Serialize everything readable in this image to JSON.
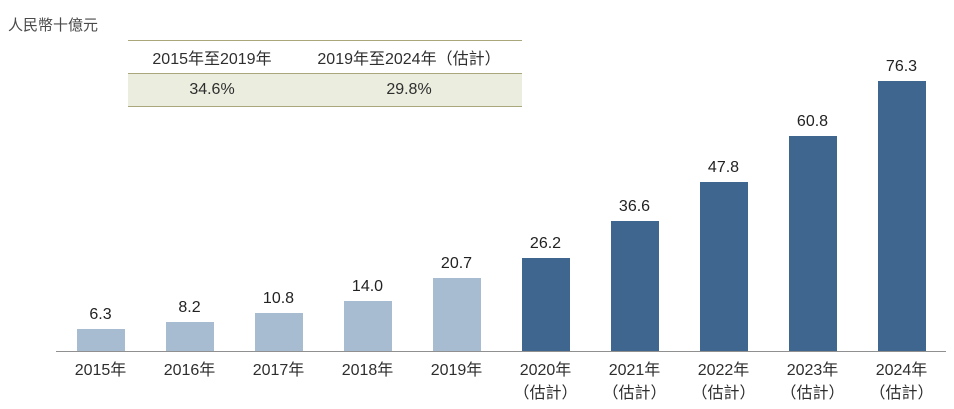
{
  "chart_data": {
    "type": "bar",
    "title": "",
    "unit_label": "人民幣十億元",
    "xlabel": "",
    "ylabel": "人民幣十億元",
    "ylim": [
      0,
      80
    ],
    "grid": false,
    "legend": "none",
    "categories": [
      "2015年",
      "2016年",
      "2017年",
      "2018年",
      "2019年",
      "2020年（估計）",
      "2021年（估計）",
      "2022年（估計）",
      "2023年（估計）",
      "2024年（估計）"
    ],
    "values": [
      6.3,
      8.2,
      10.8,
      14.0,
      20.7,
      26.2,
      36.6,
      47.8,
      60.8,
      76.3
    ],
    "points": [
      {
        "category": "2015年",
        "sublabel": "",
        "value": 6.3,
        "label": "6.3",
        "segment": "historical"
      },
      {
        "category": "2016年",
        "sublabel": "",
        "value": 8.2,
        "label": "8.2",
        "segment": "historical"
      },
      {
        "category": "2017年",
        "sublabel": "",
        "value": 10.8,
        "label": "10.8",
        "segment": "historical"
      },
      {
        "category": "2018年",
        "sublabel": "",
        "value": 14.0,
        "label": "14.0",
        "segment": "historical"
      },
      {
        "category": "2019年",
        "sublabel": "",
        "value": 20.7,
        "label": "20.7",
        "segment": "historical"
      },
      {
        "category": "2020年",
        "sublabel": "（估計）",
        "value": 26.2,
        "label": "26.2",
        "segment": "estimate"
      },
      {
        "category": "2021年",
        "sublabel": "（估計）",
        "value": 36.6,
        "label": "36.6",
        "segment": "estimate"
      },
      {
        "category": "2022年",
        "sublabel": "（估計）",
        "value": 47.8,
        "label": "47.8",
        "segment": "estimate"
      },
      {
        "category": "2023年",
        "sublabel": "（估計）",
        "value": 60.8,
        "label": "60.8",
        "segment": "estimate"
      },
      {
        "category": "2024年",
        "sublabel": "（估計）",
        "value": 76.3,
        "label": "76.3",
        "segment": "estimate"
      }
    ],
    "colors": {
      "historical": "#a7bcd1",
      "estimate": "#3f668f"
    },
    "annotation_table": {
      "headers": [
        "2015年至2019年",
        "2019年至2024年（估計）"
      ],
      "values": [
        "34.6%",
        "29.8%"
      ]
    }
  }
}
